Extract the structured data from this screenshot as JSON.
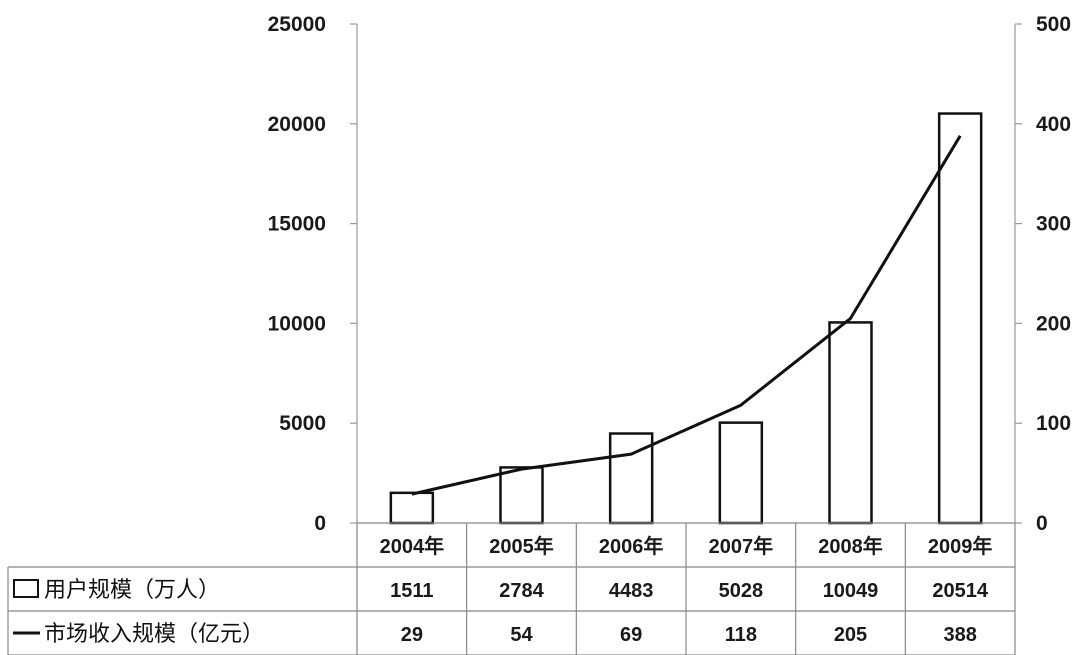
{
  "chart_data": {
    "type": "bar",
    "categories": [
      "2004年",
      "2005年",
      "2006年",
      "2007年",
      "2008年",
      "2009年"
    ],
    "series": [
      {
        "name": "用户规模（万人）",
        "type": "bar",
        "axis": "left",
        "values": [
          1511,
          2784,
          4483,
          5028,
          10049,
          20514
        ]
      },
      {
        "name": "市场收入规模（亿元）",
        "type": "line",
        "axis": "right",
        "values": [
          29,
          54,
          69,
          118,
          205,
          388
        ]
      }
    ],
    "y_left": {
      "ticks": [
        "0",
        "5000",
        "10000",
        "15000",
        "20000",
        "25000"
      ],
      "range": [
        0,
        25000
      ]
    },
    "y_right": {
      "ticks": [
        "0",
        "100",
        "200",
        "300",
        "400",
        "500"
      ],
      "range": [
        0,
        500
      ]
    },
    "table": {
      "rows": [
        {
          "label": "用户规模（万人）",
          "legend": "bar",
          "values": [
            "1511",
            "2784",
            "4483",
            "5028",
            "10049",
            "20514"
          ]
        },
        {
          "label": "市场收入规模（亿元）",
          "legend": "line",
          "values": [
            "29",
            "54",
            "69",
            "118",
            "205",
            "388"
          ]
        }
      ]
    },
    "grid": false,
    "legend": "data-table"
  }
}
